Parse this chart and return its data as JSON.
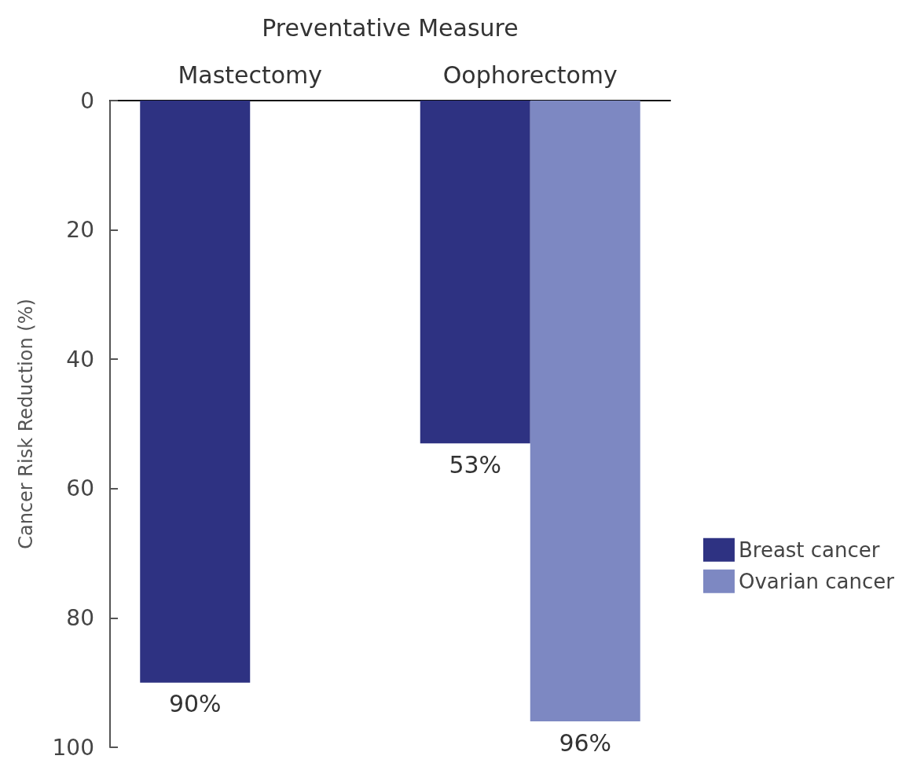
{
  "chart_data": {
    "type": "bar",
    "xlabel": "Preventative Measure",
    "ylabel": "Cancer Risk Reduction (%)",
    "categories": [
      "Mastectomy",
      "Oophorectomy"
    ],
    "series": [
      {
        "name": "Breast cancer",
        "color": "#2e3282",
        "values": [
          90,
          53
        ],
        "value_labels": [
          "90%",
          "53%"
        ]
      },
      {
        "name": "Ovarian cancer",
        "color": "#7d88c2",
        "values": [
          null,
          96
        ],
        "value_labels": [
          null,
          "96%"
        ]
      }
    ],
    "ylim": [
      100,
      0
    ],
    "yticks": [
      0,
      20,
      40,
      60,
      80,
      100
    ],
    "legend": "right"
  }
}
